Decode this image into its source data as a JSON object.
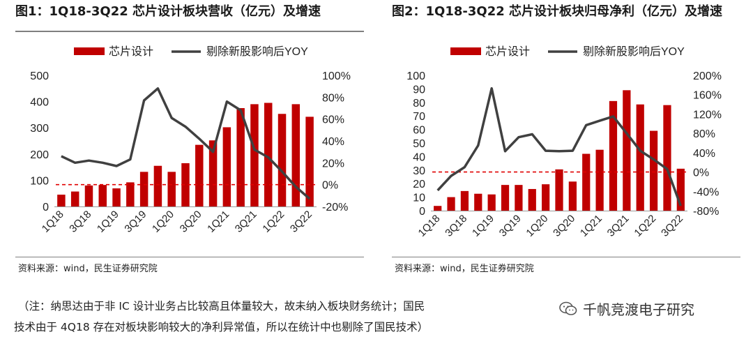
{
  "chart_data": [
    {
      "type": "bar",
      "title": "图1：1Q18-3Q22 芯片设计板块营收（亿元）及增速",
      "legend": [
        "芯片设计",
        "剔除新股影响后YOY"
      ],
      "categories": [
        "1Q18",
        "2Q18",
        "3Q18",
        "4Q18",
        "1Q19",
        "2Q19",
        "3Q19",
        "4Q19",
        "1Q20",
        "2Q20",
        "3Q20",
        "4Q20",
        "1Q21",
        "2Q21",
        "3Q21",
        "4Q21",
        "1Q22",
        "2Q22",
        "3Q22"
      ],
      "tick_labels": [
        "1Q18",
        "3Q18",
        "1Q19",
        "3Q19",
        "1Q20",
        "3Q20",
        "1Q21",
        "3Q21",
        "1Q22",
        "3Q22"
      ],
      "series": [
        {
          "name": "芯片设计",
          "kind": "bar",
          "axis": "left",
          "values": [
            45,
            57,
            80,
            82,
            69,
            92,
            132,
            155,
            132,
            165,
            235,
            252,
            302,
            375,
            390,
            395,
            353,
            390,
            342
          ]
        },
        {
          "name": "剔除新股影响后YOY",
          "kind": "line",
          "axis": "right",
          "values": [
            26,
            20,
            22,
            20,
            17,
            23,
            77,
            88,
            61,
            53,
            42,
            30,
            76,
            68,
            32,
            25,
            12,
            -2,
            -13
          ]
        }
      ],
      "ylim_left": [
        0,
        500
      ],
      "yticks_left": [
        "0",
        "100",
        "200",
        "300",
        "400",
        "500"
      ],
      "ylim_right": [
        -20,
        100
      ],
      "yticks_right": [
        "-20%",
        "0%",
        "20%",
        "40%",
        "60%",
        "80%",
        "100%"
      ],
      "reference_line": 0,
      "source": "资料来源：wind，民生证券研究院"
    },
    {
      "type": "bar",
      "title": "图2：1Q18-3Q22 芯片设计板块归母净利（亿元）及增速",
      "legend": [
        "芯片设计",
        "剔除新股影响后YOY"
      ],
      "categories": [
        "1Q18",
        "2Q18",
        "3Q18",
        "4Q18",
        "1Q19",
        "2Q19",
        "3Q19",
        "4Q19",
        "1Q20",
        "2Q20",
        "3Q20",
        "4Q20",
        "1Q21",
        "2Q21",
        "3Q21",
        "4Q21",
        "1Q22",
        "2Q22",
        "3Q22"
      ],
      "tick_labels": [
        "1Q18",
        "3Q18",
        "1Q19",
        "3Q19",
        "1Q20",
        "3Q20",
        "1Q21",
        "3Q21",
        "1Q22",
        "3Q22"
      ],
      "series": [
        {
          "name": "芯片设计",
          "kind": "bar",
          "axis": "left",
          "values": [
            3.5,
            10,
            14.5,
            12.5,
            12,
            19,
            19,
            16,
            19.5,
            30.5,
            21.5,
            42,
            45,
            81,
            89,
            78.5,
            59,
            78,
            31
          ]
        },
        {
          "name": "剔除新股影响后YOY",
          "kind": "line",
          "axis": "right",
          "values": [
            -38,
            -8,
            10,
            55,
            173,
            43,
            72,
            78,
            44,
            43,
            44,
            97,
            106,
            115,
            80,
            44,
            26,
            6,
            -70
          ]
        }
      ],
      "ylim_left": [
        0,
        100
      ],
      "yticks_left": [
        "0",
        "10",
        "20",
        "30",
        "40",
        "50",
        "60",
        "70",
        "80",
        "90",
        "100"
      ],
      "ylim_right": [
        -80,
        200
      ],
      "yticks_right": [
        "-80%",
        "-40%",
        "0%",
        "40%",
        "80%",
        "120%",
        "160%",
        "200%"
      ],
      "reference_line": 0,
      "source": "资料来源：wind，民生证券研究院"
    }
  ],
  "note": {
    "line1": "（注：纳思达由于非 IC 设计业务占比较高且体量较大，故未纳入板块财务统计；国民",
    "line2": "技术由于 4Q18 存在对板块影响较大的净利异常值，所以在统计中也剔除了国民技术）"
  },
  "brand": {
    "name": "千帆竞渡电子研究",
    "icon": "wechat-icon"
  },
  "colors": {
    "bar": "#c00000",
    "line": "#404040",
    "ref": "#e00000",
    "text": "#222222"
  }
}
